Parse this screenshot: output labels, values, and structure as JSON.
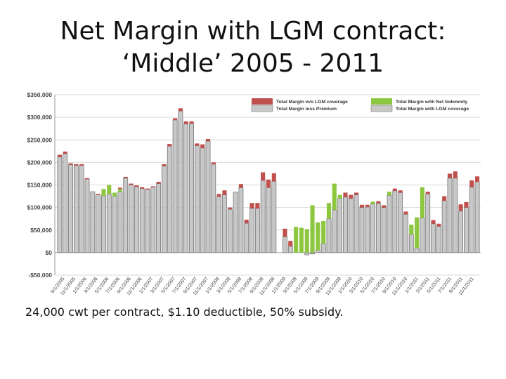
{
  "slide": {
    "title_line1": "Net Margin with LGM contract:",
    "title_line2": "‘Middle’ 2005 - 2011",
    "caption": "24,000 cwt per contract, $1.10 deductible, 50% subsidy."
  },
  "colors": {
    "gray": "#c8c8c8",
    "gray_stroke": "#6a6a6a",
    "red": "#c0504d",
    "green": "#8dc63f",
    "grid": "#d9d9d9"
  },
  "chart_data": {
    "type": "bar",
    "stacked": true,
    "ylim": [
      -50000,
      350000
    ],
    "yticks": [
      -50000,
      0,
      50000,
      100000,
      150000,
      200000,
      250000,
      300000,
      350000
    ],
    "ytick_labels": [
      "-$50,000",
      "$0",
      "$50,000",
      "$100,000",
      "$150,000",
      "$200,000",
      "$250,000",
      "$300,000",
      "$350,000"
    ],
    "legend": {
      "position": "top-right",
      "entries": [
        {
          "name": "Total Margin w/o LGM coverage",
          "color": "red"
        },
        {
          "name": "Total Margin less Premium",
          "color": "gray"
        },
        {
          "name": "Total Margin with Net Indemnity",
          "color": "green"
        },
        {
          "name": "Total Margin with LGM coverage",
          "color": "gray"
        }
      ]
    },
    "xtick_labels": [
      "9/1/2005",
      "11/1/2005",
      "1/1/2006",
      "3/1/2006",
      "5/1/2006",
      "7/1/2006",
      "9/1/2006",
      "11/1/2006",
      "1/1/2007",
      "3/1/2007",
      "5/1/2007",
      "7/1/2007",
      "9/1/2007",
      "11/1/2007",
      "1/1/2008",
      "3/1/2008",
      "5/1/2008",
      "7/1/2008",
      "9/1/2008",
      "11/1/2008",
      "1/1/2009",
      "3/1/2009",
      "5/1/2009",
      "7/1/2009",
      "9/1/2009",
      "11/1/2009",
      "1/1/2010",
      "3/1/2010",
      "5/1/2010",
      "7/1/2010",
      "9/1/2010",
      "11/1/2010",
      "1/1/2011",
      "3/1/2011",
      "5/1/2011",
      "7/1/2011",
      "9/1/2011",
      "11/1/2011"
    ],
    "series_note": "per bar: base = Total Margin with LGM coverage (gray), red = Premium, green = Net Indemnity",
    "bars": [
      {
        "base": 212000,
        "red": 5000,
        "green": 0
      },
      {
        "base": 219000,
        "red": 5000,
        "green": 0
      },
      {
        "base": 195000,
        "red": 3000,
        "green": 0
      },
      {
        "base": 193000,
        "red": 3000,
        "green": 0
      },
      {
        "base": 193000,
        "red": 3000,
        "green": 0
      },
      {
        "base": 163000,
        "red": 2000,
        "green": 0
      },
      {
        "base": 135000,
        "red": 0,
        "green": 0
      },
      {
        "base": 128000,
        "red": 2000,
        "green": 0
      },
      {
        "base": 126000,
        "red": 0,
        "green": 15000
      },
      {
        "base": 130000,
        "red": 0,
        "green": 20000
      },
      {
        "base": 125000,
        "red": 0,
        "green": 8000
      },
      {
        "base": 135000,
        "red": 3000,
        "green": 6000
      },
      {
        "base": 165000,
        "red": 3000,
        "green": 0
      },
      {
        "base": 150000,
        "red": 3000,
        "green": 0
      },
      {
        "base": 146000,
        "red": 3000,
        "green": 0
      },
      {
        "base": 142000,
        "red": 3000,
        "green": 0
      },
      {
        "base": 140000,
        "red": 2000,
        "green": 0
      },
      {
        "base": 145000,
        "red": 2000,
        "green": 0
      },
      {
        "base": 153000,
        "red": 4000,
        "green": 0
      },
      {
        "base": 192000,
        "red": 4000,
        "green": 0
      },
      {
        "base": 236000,
        "red": 5000,
        "green": 0
      },
      {
        "base": 294000,
        "red": 4000,
        "green": 0
      },
      {
        "base": 314000,
        "red": 6000,
        "green": 0
      },
      {
        "base": 285000,
        "red": 6000,
        "green": 0
      },
      {
        "base": 286000,
        "red": 5000,
        "green": 0
      },
      {
        "base": 237000,
        "red": 5000,
        "green": 0
      },
      {
        "base": 232000,
        "red": 8000,
        "green": 0
      },
      {
        "base": 247000,
        "red": 5000,
        "green": 0
      },
      {
        "base": 196000,
        "red": 4000,
        "green": 0
      },
      {
        "base": 124000,
        "red": 6000,
        "green": 0
      },
      {
        "base": 128000,
        "red": 10000,
        "green": 0
      },
      {
        "base": 96000,
        "red": 4000,
        "green": 0
      },
      {
        "base": 134000,
        "red": 0,
        "green": 0
      },
      {
        "base": 144000,
        "red": 8000,
        "green": 0
      },
      {
        "base": 65000,
        "red": 8000,
        "green": 0
      },
      {
        "base": 98000,
        "red": 12000,
        "green": 0
      },
      {
        "base": 98000,
        "red": 12000,
        "green": 0
      },
      {
        "base": 160000,
        "red": 18000,
        "green": 0
      },
      {
        "base": 144000,
        "red": 18000,
        "green": 0
      },
      {
        "base": 158000,
        "red": 18000,
        "green": 0
      },
      {
        "base": 0,
        "red": 0,
        "green": 0
      },
      {
        "base": 35000,
        "red": 18000,
        "green": 0
      },
      {
        "base": 14000,
        "red": 12000,
        "green": 0
      },
      {
        "base": 0,
        "red": 0,
        "green": 57000
      },
      {
        "base": 0,
        "red": 0,
        "green": 55000
      },
      {
        "base": -5000,
        "red": 0,
        "green": 52000
      },
      {
        "base": -3000,
        "red": 0,
        "green": 105000
      },
      {
        "base": 5000,
        "red": 0,
        "green": 62000
      },
      {
        "base": 20000,
        "red": 0,
        "green": 50000
      },
      {
        "base": 75000,
        "red": 0,
        "green": 35000
      },
      {
        "base": 95000,
        "red": 0,
        "green": 58000
      },
      {
        "base": 120000,
        "red": 0,
        "green": 8000
      },
      {
        "base": 123000,
        "red": 10000,
        "green": 0
      },
      {
        "base": 120000,
        "red": 8000,
        "green": 0
      },
      {
        "base": 128000,
        "red": 5000,
        "green": 0
      },
      {
        "base": 100000,
        "red": 6000,
        "green": 0
      },
      {
        "base": 101000,
        "red": 5000,
        "green": 0
      },
      {
        "base": 108000,
        "red": 0,
        "green": 5000
      },
      {
        "base": 109000,
        "red": 5000,
        "green": 0
      },
      {
        "base": 100000,
        "red": 5000,
        "green": 0
      },
      {
        "base": 127000,
        "red": 0,
        "green": 8000
      },
      {
        "base": 137000,
        "red": 5000,
        "green": 0
      },
      {
        "base": 133000,
        "red": 5000,
        "green": 0
      },
      {
        "base": 85000,
        "red": 6000,
        "green": 0
      },
      {
        "base": 40000,
        "red": 0,
        "green": 22000
      },
      {
        "base": 10000,
        "red": 0,
        "green": 68000
      },
      {
        "base": 77000,
        "red": 0,
        "green": 68000
      },
      {
        "base": 130000,
        "red": 5000,
        "green": 0
      },
      {
        "base": 64000,
        "red": 8000,
        "green": 0
      },
      {
        "base": 58000,
        "red": 6000,
        "green": 0
      },
      {
        "base": 115000,
        "red": 10000,
        "green": 0
      },
      {
        "base": 165000,
        "red": 10000,
        "green": 0
      },
      {
        "base": 165000,
        "red": 15000,
        "green": 0
      },
      {
        "base": 92000,
        "red": 15000,
        "green": 0
      },
      {
        "base": 100000,
        "red": 12000,
        "green": 0
      },
      {
        "base": 145000,
        "red": 15000,
        "green": 0
      },
      {
        "base": 157000,
        "red": 12000,
        "green": 0
      }
    ]
  }
}
